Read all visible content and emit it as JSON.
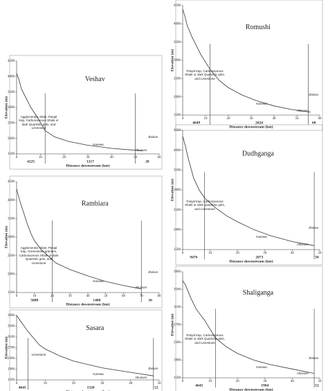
{
  "chart_data": [
    {
      "type": "line",
      "title": "Veshav",
      "xlabel": "Distance downstream (km)",
      "ylabel": "Elevation (m)",
      "x": [
        0,
        1,
        2,
        4,
        6,
        9,
        12,
        16,
        22,
        30,
        40,
        48,
        53
      ],
      "values": [
        4100,
        3900,
        3600,
        3300,
        3000,
        2650,
        2250,
        2050,
        1900,
        1780,
        1680,
        1630,
        1600
      ],
      "xlim": [
        0,
        60
      ],
      "xticks": [
        0,
        10,
        20,
        30,
        40,
        50,
        60
      ],
      "ylim": [
        1500,
        4500
      ],
      "yticks": [
        1500,
        2000,
        2500,
        3000,
        3500,
        4000,
        4500
      ],
      "boundaries": [
        12,
        50
      ],
      "segment_labels": [
        "4225",
        "1217",
        "28"
      ],
      "notes": [
        "Agglomeratic Slate, Panjal trap, Carbonaceous Shale or dark Quartzitic grits, and Limestone",
        "Karewa",
        "Alluvium",
        "Jhelum"
      ]
    },
    {
      "type": "line",
      "title": "Rambiara",
      "xlabel": "Distance downstream (km)",
      "ylabel": "Elevation (m)",
      "x": [
        0,
        2,
        4,
        6,
        8,
        10,
        14,
        18,
        22,
        30,
        40,
        50,
        60,
        70
      ],
      "values": [
        4300,
        3950,
        3650,
        3350,
        3100,
        2900,
        2650,
        2480,
        2300,
        2120,
        1950,
        1800,
        1690,
        1600
      ],
      "xlim": [
        0,
        80
      ],
      "xticks": [
        0,
        10,
        20,
        30,
        40,
        50,
        60,
        70,
        80
      ],
      "ylim": [
        1500,
        4500
      ],
      "yticks": [
        1500,
        2000,
        2500,
        3000,
        3500,
        4000,
        4500
      ],
      "boundaries": [
        20,
        70
      ],
      "segment_labels": [
        "5888",
        "1480",
        "36"
      ],
      "notes": [
        "Agglomeratic Slate, Panjal trap, Greenstone granites, Carbonaceous Shale or dark Quartzitic grits, and Limestone",
        "Karewa",
        "Alluvium",
        "Jhelum"
      ]
    },
    {
      "type": "line",
      "title": "Sasara",
      "xlabel": "Distance downstream (km)",
      "ylabel": "Elevation (m)",
      "x": [
        0,
        2,
        4,
        6,
        8,
        10,
        15,
        20,
        30,
        40,
        48
      ],
      "values": [
        3900,
        3600,
        3300,
        3050,
        2800,
        2650,
        2400,
        2200,
        1950,
        1780,
        1650
      ],
      "xlim": [
        0,
        50
      ],
      "xticks": [
        0,
        10,
        20,
        30,
        40,
        50
      ],
      "ylim": [
        1500,
        3900
      ],
      "yticks": [
        1500,
        1900,
        2300,
        2700,
        3100,
        3500,
        3900
      ],
      "boundaries": [
        4,
        48
      ],
      "segment_labels": [
        "4645",
        "1320",
        "52"
      ],
      "notes": [
        "Limestone",
        "Karewa",
        "Alluvium",
        "Jhelum"
      ]
    },
    {
      "type": "line",
      "title": "Romushi",
      "xlabel": "Distance downstream (km)",
      "ylabel": "Elevation (m)",
      "x": [
        0,
        1,
        2,
        4,
        6,
        8,
        12,
        16,
        20,
        26,
        32,
        40,
        48,
        56
      ],
      "values": [
        4400,
        4200,
        3950,
        3650,
        3400,
        3150,
        2750,
        2450,
        2250,
        2050,
        1900,
        1750,
        1650,
        1580
      ],
      "xlim": [
        0,
        60
      ],
      "xticks": [
        0,
        10,
        20,
        30,
        40,
        50,
        60
      ],
      "ylim": [
        1500,
        4500
      ],
      "yticks": [
        1500,
        2000,
        2500,
        3000,
        3500,
        4000,
        4500
      ],
      "boundaries": [
        12,
        55
      ],
      "segment_labels": [
        "4649",
        "2624",
        "60"
      ],
      "notes": [
        "Panjal trap, Carbonaceous Shale or dark Quartzitic grits, and Limestone",
        "Karewa",
        "Alluvium",
        "Jhelum"
      ]
    },
    {
      "type": "line",
      "title": "Dudhganga",
      "xlabel": "Distance downstream (km)",
      "ylabel": "Elevation (m)",
      "x": [
        0,
        1,
        2,
        3,
        4,
        6,
        8,
        12,
        16,
        20,
        26,
        32,
        40,
        48
      ],
      "values": [
        4350,
        4100,
        3800,
        3550,
        3300,
        3000,
        2800,
        2550,
        2350,
        2200,
        2000,
        1850,
        1700,
        1600
      ],
      "xlim": [
        0,
        50
      ],
      "xticks": [
        0,
        10,
        20,
        30,
        40,
        50
      ],
      "ylim": [
        1500,
        4500
      ],
      "yticks": [
        1500,
        2000,
        2500,
        3000,
        3500,
        4000,
        4500
      ],
      "boundaries": [
        8,
        48
      ],
      "segment_labels": [
        "9476",
        "2073",
        "50"
      ],
      "notes": [
        "Panjal trap, Carbonaceous Shale or dark Quartzitic grits, and Limestone",
        "Karewa",
        "Alluvium",
        "Jhelum"
      ]
    },
    {
      "type": "line",
      "title": "Shaliganga",
      "xlabel": "Distance downstream (km)",
      "ylabel": "Elevation (m)",
      "x": [
        0,
        1,
        2,
        3,
        5,
        8,
        10,
        12,
        16,
        20,
        26,
        32,
        40,
        48
      ],
      "values": [
        3700,
        3600,
        3450,
        3300,
        3050,
        2800,
        2600,
        2400,
        2200,
        2050,
        1900,
        1800,
        1700,
        1600
      ],
      "xlim": [
        0,
        50
      ],
      "xticks": [
        0,
        10,
        20,
        30,
        40,
        50
      ],
      "ylim": [
        1500,
        3900
      ],
      "yticks": [
        1500,
        1900,
        2300,
        2700,
        3100,
        3500,
        3900
      ],
      "boundaries": [
        12,
        48
      ],
      "segment_labels": [
        "4645",
        "1904",
        "52"
      ],
      "notes": [
        "Panjal trap, Carbonaceous Shale or dark Quartzitic grits, and Limestone",
        "Karewa",
        "Alluvium",
        "Jhelum"
      ]
    }
  ]
}
